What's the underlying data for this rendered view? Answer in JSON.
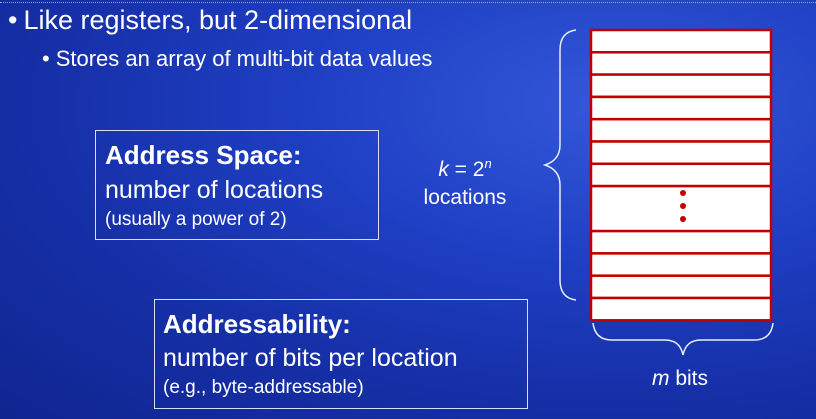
{
  "bullets": {
    "main": "Like registers, but 2-dimensional",
    "sub": "Stores an array of multi-bit data values",
    "marker": "•"
  },
  "address_space": {
    "heading": "Address Space:",
    "line": "number of locations",
    "note": "(usually a power of 2)"
  },
  "addressability": {
    "heading": "Addressability:",
    "line": "number of bits per location",
    "note": "(e.g., byte-addressable)"
  },
  "memory": {
    "k_var": "k",
    "k_eq": " = 2",
    "k_exp": "n",
    "locations_label": "locations",
    "m_var": "m",
    "bits_label": " bits",
    "row_count": 12,
    "gap_after_row": 7,
    "colors": {
      "fill": "#ffffff",
      "border": "#c00000",
      "dots": "#c00000",
      "brace": "#e8ecfa"
    }
  }
}
